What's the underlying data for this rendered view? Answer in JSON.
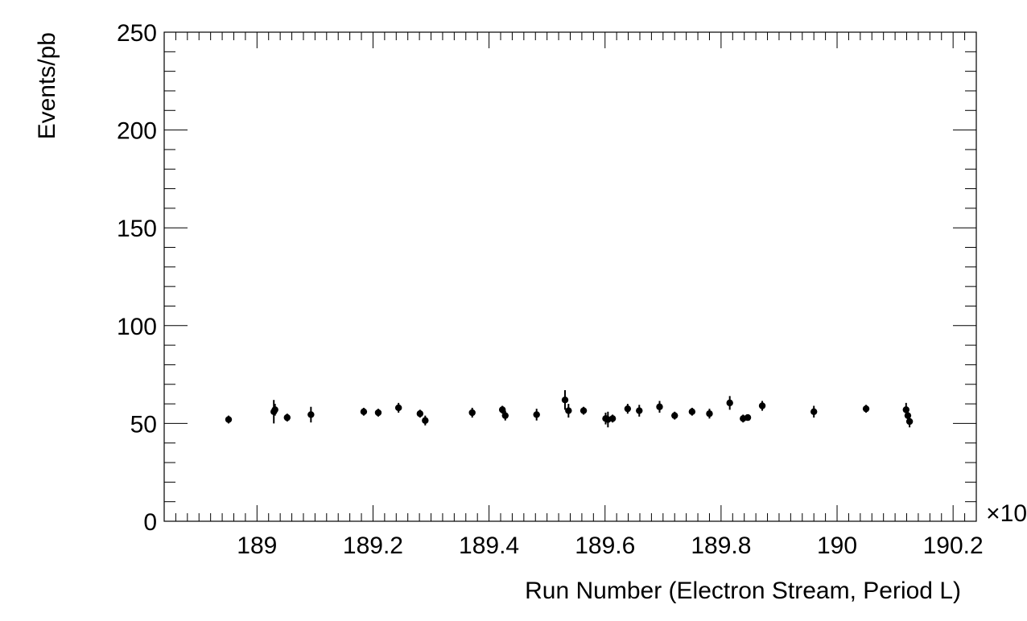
{
  "chart_data": {
    "type": "scatter",
    "title": "",
    "xlabel": "Run Number (Electron Stream, Period L)",
    "ylabel": "Events/pb",
    "x_multiplier_label": "×10",
    "xlim": [
      188.84,
      190.24
    ],
    "ylim": [
      0,
      250
    ],
    "x_ticks": [
      189,
      189.2,
      189.4,
      189.6,
      189.8,
      190,
      190.2
    ],
    "x_tick_labels": [
      "189",
      "189.2",
      "189.4",
      "189.6",
      "189.8",
      "190",
      "190.2"
    ],
    "y_ticks": [
      0,
      50,
      100,
      150,
      200,
      250
    ],
    "y_tick_labels": [
      "0",
      "50",
      "100",
      "150",
      "200",
      "250"
    ],
    "grid": false,
    "marker_color": "#000000",
    "series": [
      {
        "points": [
          {
            "x": 188.951,
            "y": 52.0,
            "err": 2.0
          },
          {
            "x": 189.029,
            "y": 56.0,
            "err": 6.0
          },
          {
            "x": 189.031,
            "y": 57.0,
            "err": 3.0
          },
          {
            "x": 189.052,
            "y": 53.0,
            "err": 2.0
          },
          {
            "x": 189.093,
            "y": 54.5,
            "err": 4.0
          },
          {
            "x": 189.184,
            "y": 56.0,
            "err": 2.0
          },
          {
            "x": 189.209,
            "y": 55.5,
            "err": 2.0
          },
          {
            "x": 189.244,
            "y": 58.0,
            "err": 2.5
          },
          {
            "x": 189.281,
            "y": 55.0,
            "err": 2.0
          },
          {
            "x": 189.29,
            "y": 51.5,
            "err": 2.5
          },
          {
            "x": 189.371,
            "y": 55.5,
            "err": 2.5
          },
          {
            "x": 189.423,
            "y": 57.0,
            "err": 2.0
          },
          {
            "x": 189.428,
            "y": 54.0,
            "err": 2.5
          },
          {
            "x": 189.482,
            "y": 54.5,
            "err": 3.0
          },
          {
            "x": 189.531,
            "y": 62.0,
            "err": 5.0
          },
          {
            "x": 189.537,
            "y": 56.5,
            "err": 3.5
          },
          {
            "x": 189.563,
            "y": 56.5,
            "err": 2.0
          },
          {
            "x": 189.601,
            "y": 52.5,
            "err": 3.0
          },
          {
            "x": 189.605,
            "y": 52.0,
            "err": 4.0
          },
          {
            "x": 189.613,
            "y": 52.5,
            "err": 2.0
          },
          {
            "x": 189.639,
            "y": 57.5,
            "err": 2.5
          },
          {
            "x": 189.659,
            "y": 56.5,
            "err": 3.0
          },
          {
            "x": 189.694,
            "y": 58.5,
            "err": 3.0
          },
          {
            "x": 189.72,
            "y": 54.0,
            "err": 2.0
          },
          {
            "x": 189.75,
            "y": 56.0,
            "err": 2.0
          },
          {
            "x": 189.78,
            "y": 55.0,
            "err": 2.5
          },
          {
            "x": 189.815,
            "y": 60.5,
            "err": 3.5
          },
          {
            "x": 189.838,
            "y": 52.5,
            "err": 2.0
          },
          {
            "x": 189.846,
            "y": 53.0,
            "err": 1.5
          },
          {
            "x": 189.871,
            "y": 59.0,
            "err": 2.5
          },
          {
            "x": 189.96,
            "y": 56.0,
            "err": 3.0
          },
          {
            "x": 190.05,
            "y": 57.5,
            "err": 2.0
          },
          {
            "x": 190.119,
            "y": 57.0,
            "err": 3.5
          },
          {
            "x": 190.122,
            "y": 54.0,
            "err": 2.5
          },
          {
            "x": 190.125,
            "y": 51.0,
            "err": 3.0
          }
        ]
      }
    ]
  }
}
